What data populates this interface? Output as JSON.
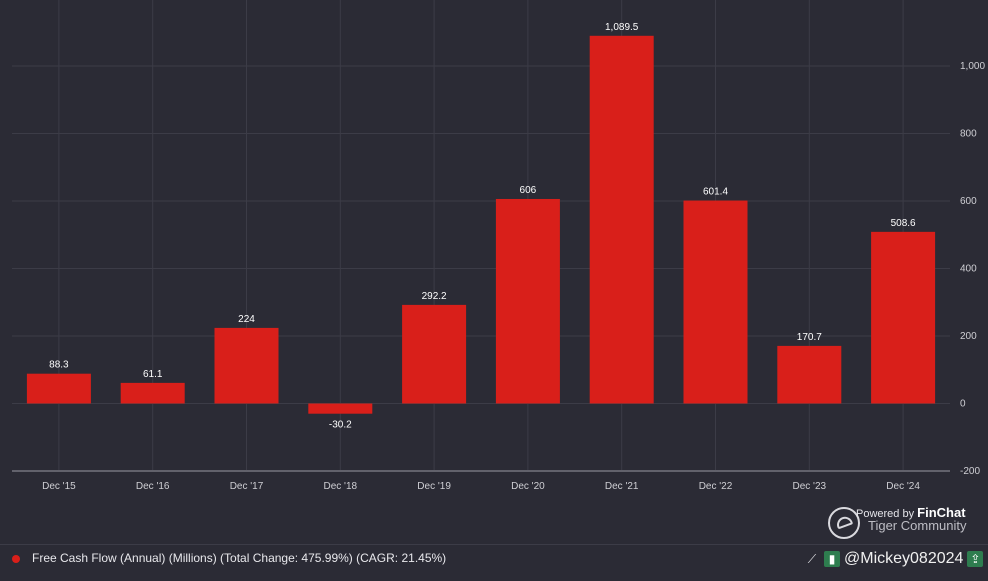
{
  "chart_data": {
    "type": "bar",
    "categories": [
      "Dec '15",
      "Dec '16",
      "Dec '17",
      "Dec '18",
      "Dec '19",
      "Dec '20",
      "Dec '21",
      "Dec '22",
      "Dec '23",
      "Dec '24"
    ],
    "values": [
      88.3,
      61.1,
      224,
      -30.2,
      292.2,
      606,
      1089.5,
      601.4,
      170.7,
      508.6
    ],
    "data_labels": [
      "88.3",
      "61.1",
      "224",
      "-30.2",
      "292.2",
      "606",
      "1,089.5",
      "601.4",
      "170.7",
      "508.6"
    ],
    "yticks": [
      -200,
      0,
      200,
      400,
      600,
      800,
      1000
    ],
    "ytick_labels": [
      "-200",
      "0",
      "200",
      "400",
      "600",
      "800",
      "1,000"
    ],
    "ylim": [
      -200,
      1200
    ],
    "grid": true,
    "legend_position": "bottom-left",
    "title": "",
    "xlabel": "",
    "ylabel": ""
  },
  "colors": {
    "bar": "#d91f1a",
    "background": "#2b2b35",
    "grid": "#3c3c47"
  },
  "legend": {
    "label": "Free Cash Flow (Annual) (Millions) (Total Change: 475.99%) (CAGR: 21.45%)"
  },
  "watermark": {
    "powered": "Powered by",
    "brand": "FinChat",
    "community": "Tiger Community"
  },
  "toolbar": {
    "user": "@Mickey082024",
    "icons": [
      "trend-icon",
      "bar-chart-icon",
      "share-icon",
      "settings-icon",
      "close-icon"
    ]
  }
}
